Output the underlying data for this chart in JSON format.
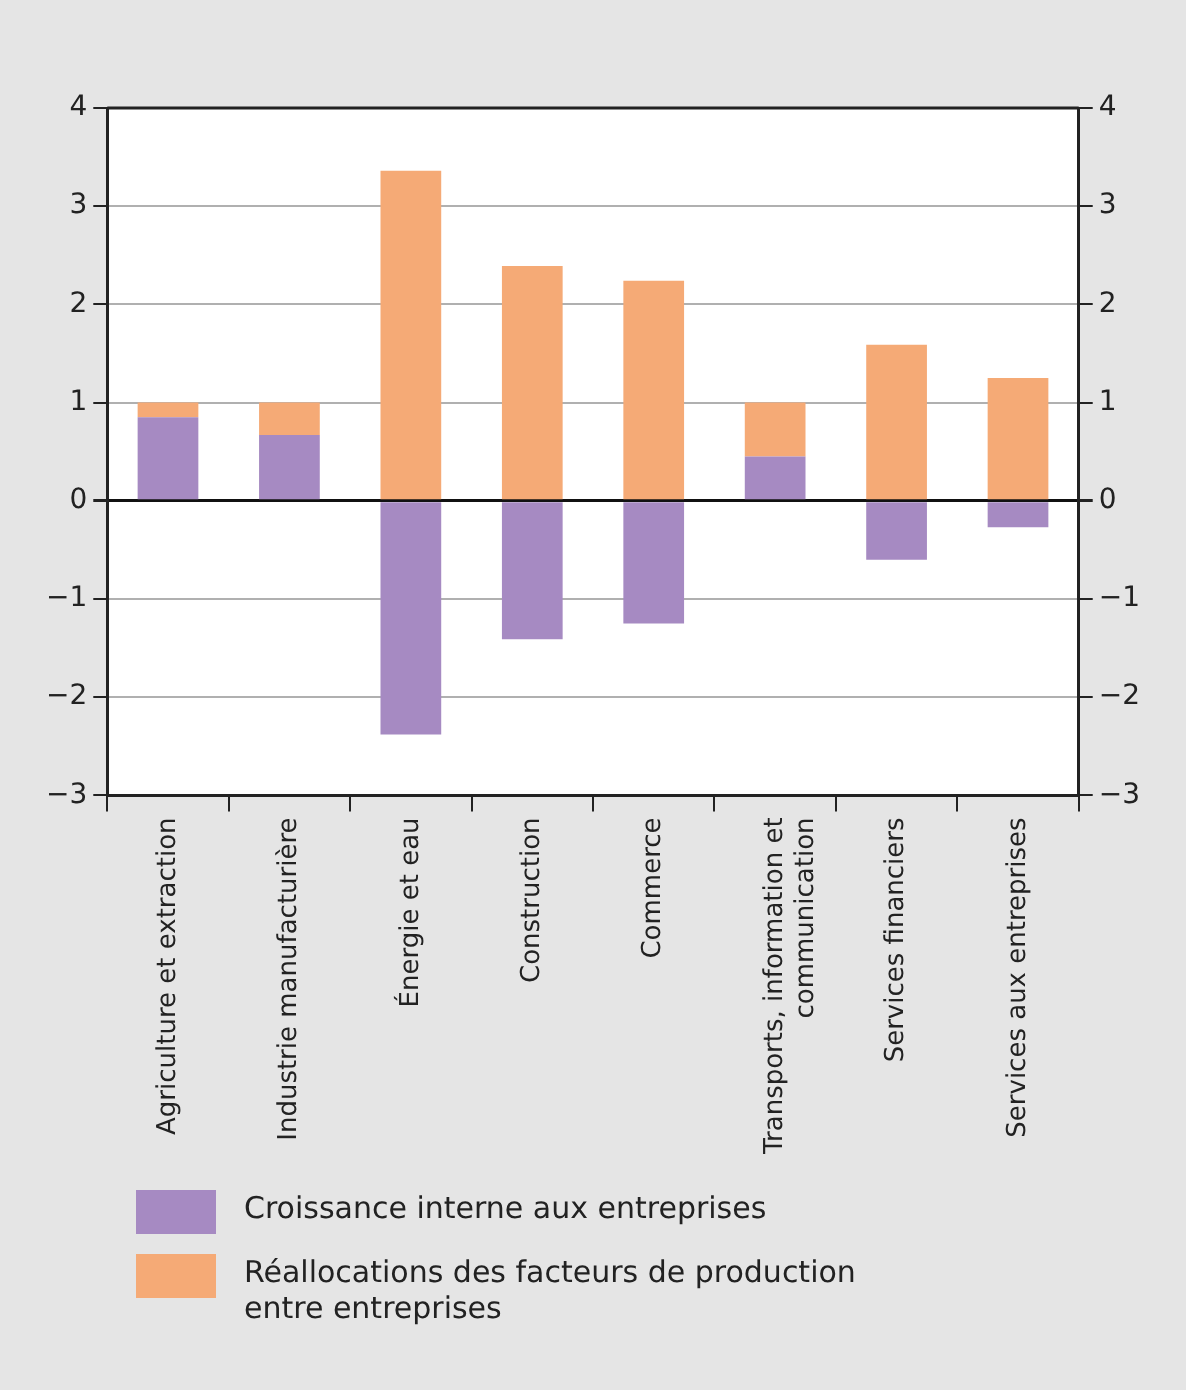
{
  "chart_data": {
    "type": "bar",
    "stacked": true,
    "categories": [
      "Agriculture et extraction",
      "Industrie manufacturière",
      "Énergie et eau",
      "Construction",
      "Commerce",
      "Transports, information et communication",
      "Services financiers",
      "Services aux entreprises"
    ],
    "series": [
      {
        "name": "Croissance interne aux entreprises",
        "color": "#a68ac2",
        "values": [
          0.85,
          0.67,
          -2.38,
          -1.41,
          -1.25,
          0.45,
          -0.6,
          -0.27
        ]
      },
      {
        "name": "Réallocations des facteurs de production entre entreprises",
        "color": "#f5aa76",
        "values": [
          0.15,
          0.33,
          3.36,
          2.39,
          2.24,
          0.55,
          1.59,
          1.25
        ]
      }
    ],
    "ylim": [
      -3,
      4
    ],
    "yticks": [
      {
        "value": -3,
        "label": "−3"
      },
      {
        "value": -2,
        "label": "−2"
      },
      {
        "value": -1,
        "label": "−1"
      },
      0,
      1,
      2,
      3,
      4
    ],
    "y2lim": [
      -3,
      4
    ],
    "y2ticks": [
      {
        "value": -3,
        "label": "−3"
      },
      {
        "value": -2,
        "label": "−2"
      },
      {
        "value": -1,
        "label": "−1"
      },
      0,
      1,
      2,
      3,
      4
    ],
    "grid": "y",
    "legend": "bottom"
  }
}
